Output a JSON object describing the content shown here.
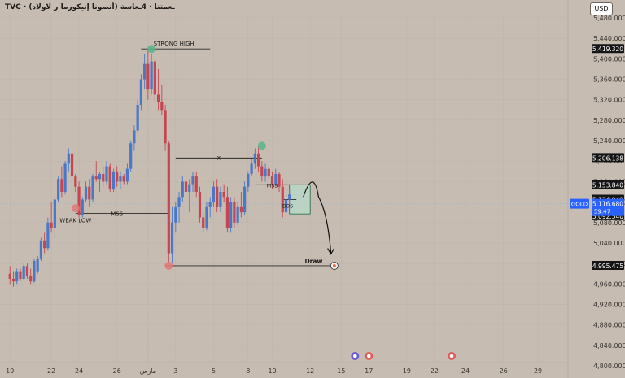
{
  "header": {
    "title": "TVC · (أنصونا إنيكورما ر لاولاد) ـعمتنا · 4ـعاسة",
    "currency_button": "USD"
  },
  "colors": {
    "background": "#c6bcb2",
    "up_candle": "#4a78c7",
    "down_candle": "#c54650",
    "line": "#2a2a2a",
    "grid": "#bdb3a9",
    "axis_text": "#3a3631",
    "gold_badge": "#2962ff",
    "zone_fill": "#b8d8c9",
    "zone_border": "#1f6b4a",
    "strong_high_dot": "#59b48a",
    "weak_low_dot": "#e07a7a"
  },
  "chart_data": {
    "type": "candlestick",
    "symbol": "GOLD",
    "ylim": [
      4800,
      5480
    ],
    "y_ticks": [
      4800,
      4840,
      4880,
      4920,
      4960,
      5000,
      5040,
      5080,
      5120,
      5160,
      5200,
      5240,
      5280,
      5320,
      5360,
      5400,
      5440,
      5480
    ],
    "y_tick_labels": [
      "4,800.000",
      "4,840.000",
      "4,880.000",
      "4,920.000",
      "4,960.000",
      "5,000.000",
      "5,040.000",
      "5,080.000",
      "5,120.000",
      "5,160.000",
      "5,200.000",
      "5,240.000",
      "5,280.000",
      "5,320.000",
      "5,360.000",
      "5,400.000",
      "5,440.000",
      "5,480.000"
    ],
    "x_ticks": [
      {
        "label": "19",
        "bar": 1
      },
      {
        "label": "22",
        "bar": 13
      },
      {
        "label": "24",
        "bar": 21
      },
      {
        "label": "26",
        "bar": 32
      },
      {
        "label": "مارس",
        "bar": 41
      },
      {
        "label": "3",
        "bar": 49
      },
      {
        "label": "5",
        "bar": 60
      },
      {
        "label": "8",
        "bar": 70
      },
      {
        "label": "10",
        "bar": 77
      },
      {
        "label": "12",
        "bar": 88
      },
      {
        "label": "15",
        "bar": 97
      },
      {
        "label": "17",
        "bar": 105
      },
      {
        "label": "19",
        "bar": 116
      },
      {
        "label": "22",
        "bar": 124
      },
      {
        "label": "24",
        "bar": 133
      },
      {
        "label": "26",
        "bar": 144
      },
      {
        "label": "29",
        "bar": 154
      }
    ],
    "bar_count_visible": 172,
    "candles": [
      [
        4980,
        4995,
        4960,
        4970
      ],
      [
        4970,
        4985,
        4955,
        4965
      ],
      [
        4965,
        4990,
        4960,
        4985
      ],
      [
        4985,
        4990,
        4965,
        4970
      ],
      [
        4970,
        5000,
        4968,
        4995
      ],
      [
        4995,
        5000,
        4970,
        4975
      ],
      [
        4975,
        4990,
        4960,
        4965
      ],
      [
        4965,
        5010,
        4962,
        5005
      ],
      [
        4985,
        5015,
        4980,
        5010
      ],
      [
        5010,
        5050,
        5005,
        5045
      ],
      [
        5045,
        5060,
        5020,
        5030
      ],
      [
        5030,
        5090,
        5025,
        5080
      ],
      [
        5080,
        5120,
        5060,
        5070
      ],
      [
        5070,
        5130,
        5050,
        5125
      ],
      [
        5125,
        5170,
        5120,
        5165
      ],
      [
        5165,
        5190,
        5130,
        5140
      ],
      [
        5140,
        5200,
        5135,
        5195
      ],
      [
        5195,
        5225,
        5180,
        5215
      ],
      [
        5215,
        5225,
        5160,
        5170
      ],
      [
        5170,
        5175,
        5140,
        5150
      ],
      [
        5150,
        5160,
        5090,
        5095
      ],
      [
        5095,
        5130,
        5090,
        5125
      ],
      [
        5125,
        5160,
        5120,
        5150
      ],
      [
        5150,
        5165,
        5110,
        5125
      ],
      [
        5125,
        5175,
        5120,
        5170
      ],
      [
        5170,
        5200,
        5160,
        5165
      ],
      [
        5165,
        5180,
        5140,
        5175
      ],
      [
        5175,
        5190,
        5150,
        5160
      ],
      [
        5160,
        5200,
        5155,
        5190
      ],
      [
        5190,
        5195,
        5140,
        5145
      ],
      [
        5145,
        5185,
        5140,
        5180
      ],
      [
        5180,
        5190,
        5150,
        5160
      ],
      [
        5160,
        5180,
        5145,
        5170
      ],
      [
        5170,
        5175,
        5155,
        5160
      ],
      [
        5160,
        5195,
        5155,
        5185
      ],
      [
        5185,
        5240,
        5180,
        5235
      ],
      [
        5235,
        5270,
        5220,
        5260
      ],
      [
        5260,
        5320,
        5255,
        5310
      ],
      [
        5310,
        5370,
        5300,
        5360
      ],
      [
        5360,
        5410,
        5340,
        5390
      ],
      [
        5390,
        5420,
        5320,
        5340
      ],
      [
        5340,
        5410,
        5330,
        5395
      ],
      [
        5395,
        5400,
        5315,
        5330
      ],
      [
        5330,
        5380,
        5300,
        5315
      ],
      [
        5315,
        5350,
        5290,
        5300
      ],
      [
        5300,
        5310,
        5220,
        5235
      ],
      [
        5235,
        5240,
        5000,
        5020
      ],
      [
        5020,
        5110,
        5000,
        5080
      ],
      [
        5080,
        5120,
        5060,
        5110
      ],
      [
        5110,
        5140,
        5080,
        5130
      ],
      [
        5130,
        5170,
        5120,
        5160
      ],
      [
        5160,
        5180,
        5120,
        5140
      ],
      [
        5140,
        5165,
        5100,
        5155
      ],
      [
        5155,
        5180,
        5140,
        5170
      ],
      [
        5170,
        5180,
        5130,
        5140
      ],
      [
        5140,
        5150,
        5080,
        5090
      ],
      [
        5090,
        5100,
        5060,
        5070
      ],
      [
        5070,
        5120,
        5065,
        5110
      ],
      [
        5110,
        5130,
        5090,
        5120
      ],
      [
        5120,
        5160,
        5110,
        5150
      ],
      [
        5150,
        5165,
        5100,
        5110
      ],
      [
        5110,
        5150,
        5100,
        5140
      ],
      [
        5140,
        5155,
        5120,
        5130
      ],
      [
        5130,
        5150,
        5060,
        5070
      ],
      [
        5070,
        5130,
        5060,
        5120
      ],
      [
        5120,
        5130,
        5070,
        5080
      ],
      [
        5080,
        5120,
        5075,
        5110
      ],
      [
        5110,
        5140,
        5090,
        5100
      ],
      [
        5100,
        5160,
        5095,
        5150
      ],
      [
        5150,
        5180,
        5140,
        5175
      ],
      [
        5175,
        5205,
        5170,
        5195
      ],
      [
        5195,
        5225,
        5185,
        5215
      ],
      [
        5215,
        5230,
        5180,
        5190
      ],
      [
        5190,
        5200,
        5160,
        5170
      ],
      [
        5170,
        5195,
        5160,
        5185
      ],
      [
        5185,
        5190,
        5165,
        5170
      ],
      [
        5170,
        5180,
        5145,
        5155
      ],
      [
        5155,
        5185,
        5150,
        5175
      ],
      [
        5175,
        5178,
        5140,
        5150
      ],
      [
        5150,
        5165,
        5090,
        5100
      ],
      [
        5100,
        5130,
        5080,
        5125
      ],
      [
        5125,
        5145,
        5110,
        5135
      ]
    ],
    "current_price": 5116.68,
    "countdown": "59:47",
    "price_labels": [
      {
        "text": "5,419.320",
        "value": 5419.32,
        "style": "dark"
      },
      {
        "text": "5,206.138",
        "value": 5206.138,
        "style": "dark"
      },
      {
        "text": "5,153.840",
        "value": 5153.84,
        "style": "dark"
      },
      {
        "text": "5,124.940",
        "value": 5124.94,
        "style": "dark"
      },
      {
        "text": "5,096.860",
        "value": 5096.86,
        "style": "dark"
      },
      {
        "text": "5,092.540",
        "value": 5092.54,
        "style": "dark"
      },
      {
        "text": "4,995.475",
        "value": 4995.475,
        "style": "dark"
      }
    ],
    "annotations": {
      "strong_high": {
        "label": "STRONG HIGH",
        "price": 5419.32
      },
      "weak_low": {
        "label": "WEAK LOW",
        "price": 5098
      },
      "mss_left": {
        "label": "MSS",
        "price": 5098
      },
      "x_mark": {
        "label": "x",
        "price": 5206.138
      },
      "mss_right": {
        "label": "MSS",
        "price": 5153.84
      },
      "bos": {
        "label": "BOS",
        "price": 5124.94
      },
      "draw": {
        "label": "Draw",
        "price": 4995.475
      },
      "zone": {
        "top": 5153.84,
        "bottom": 5096.86
      }
    }
  }
}
